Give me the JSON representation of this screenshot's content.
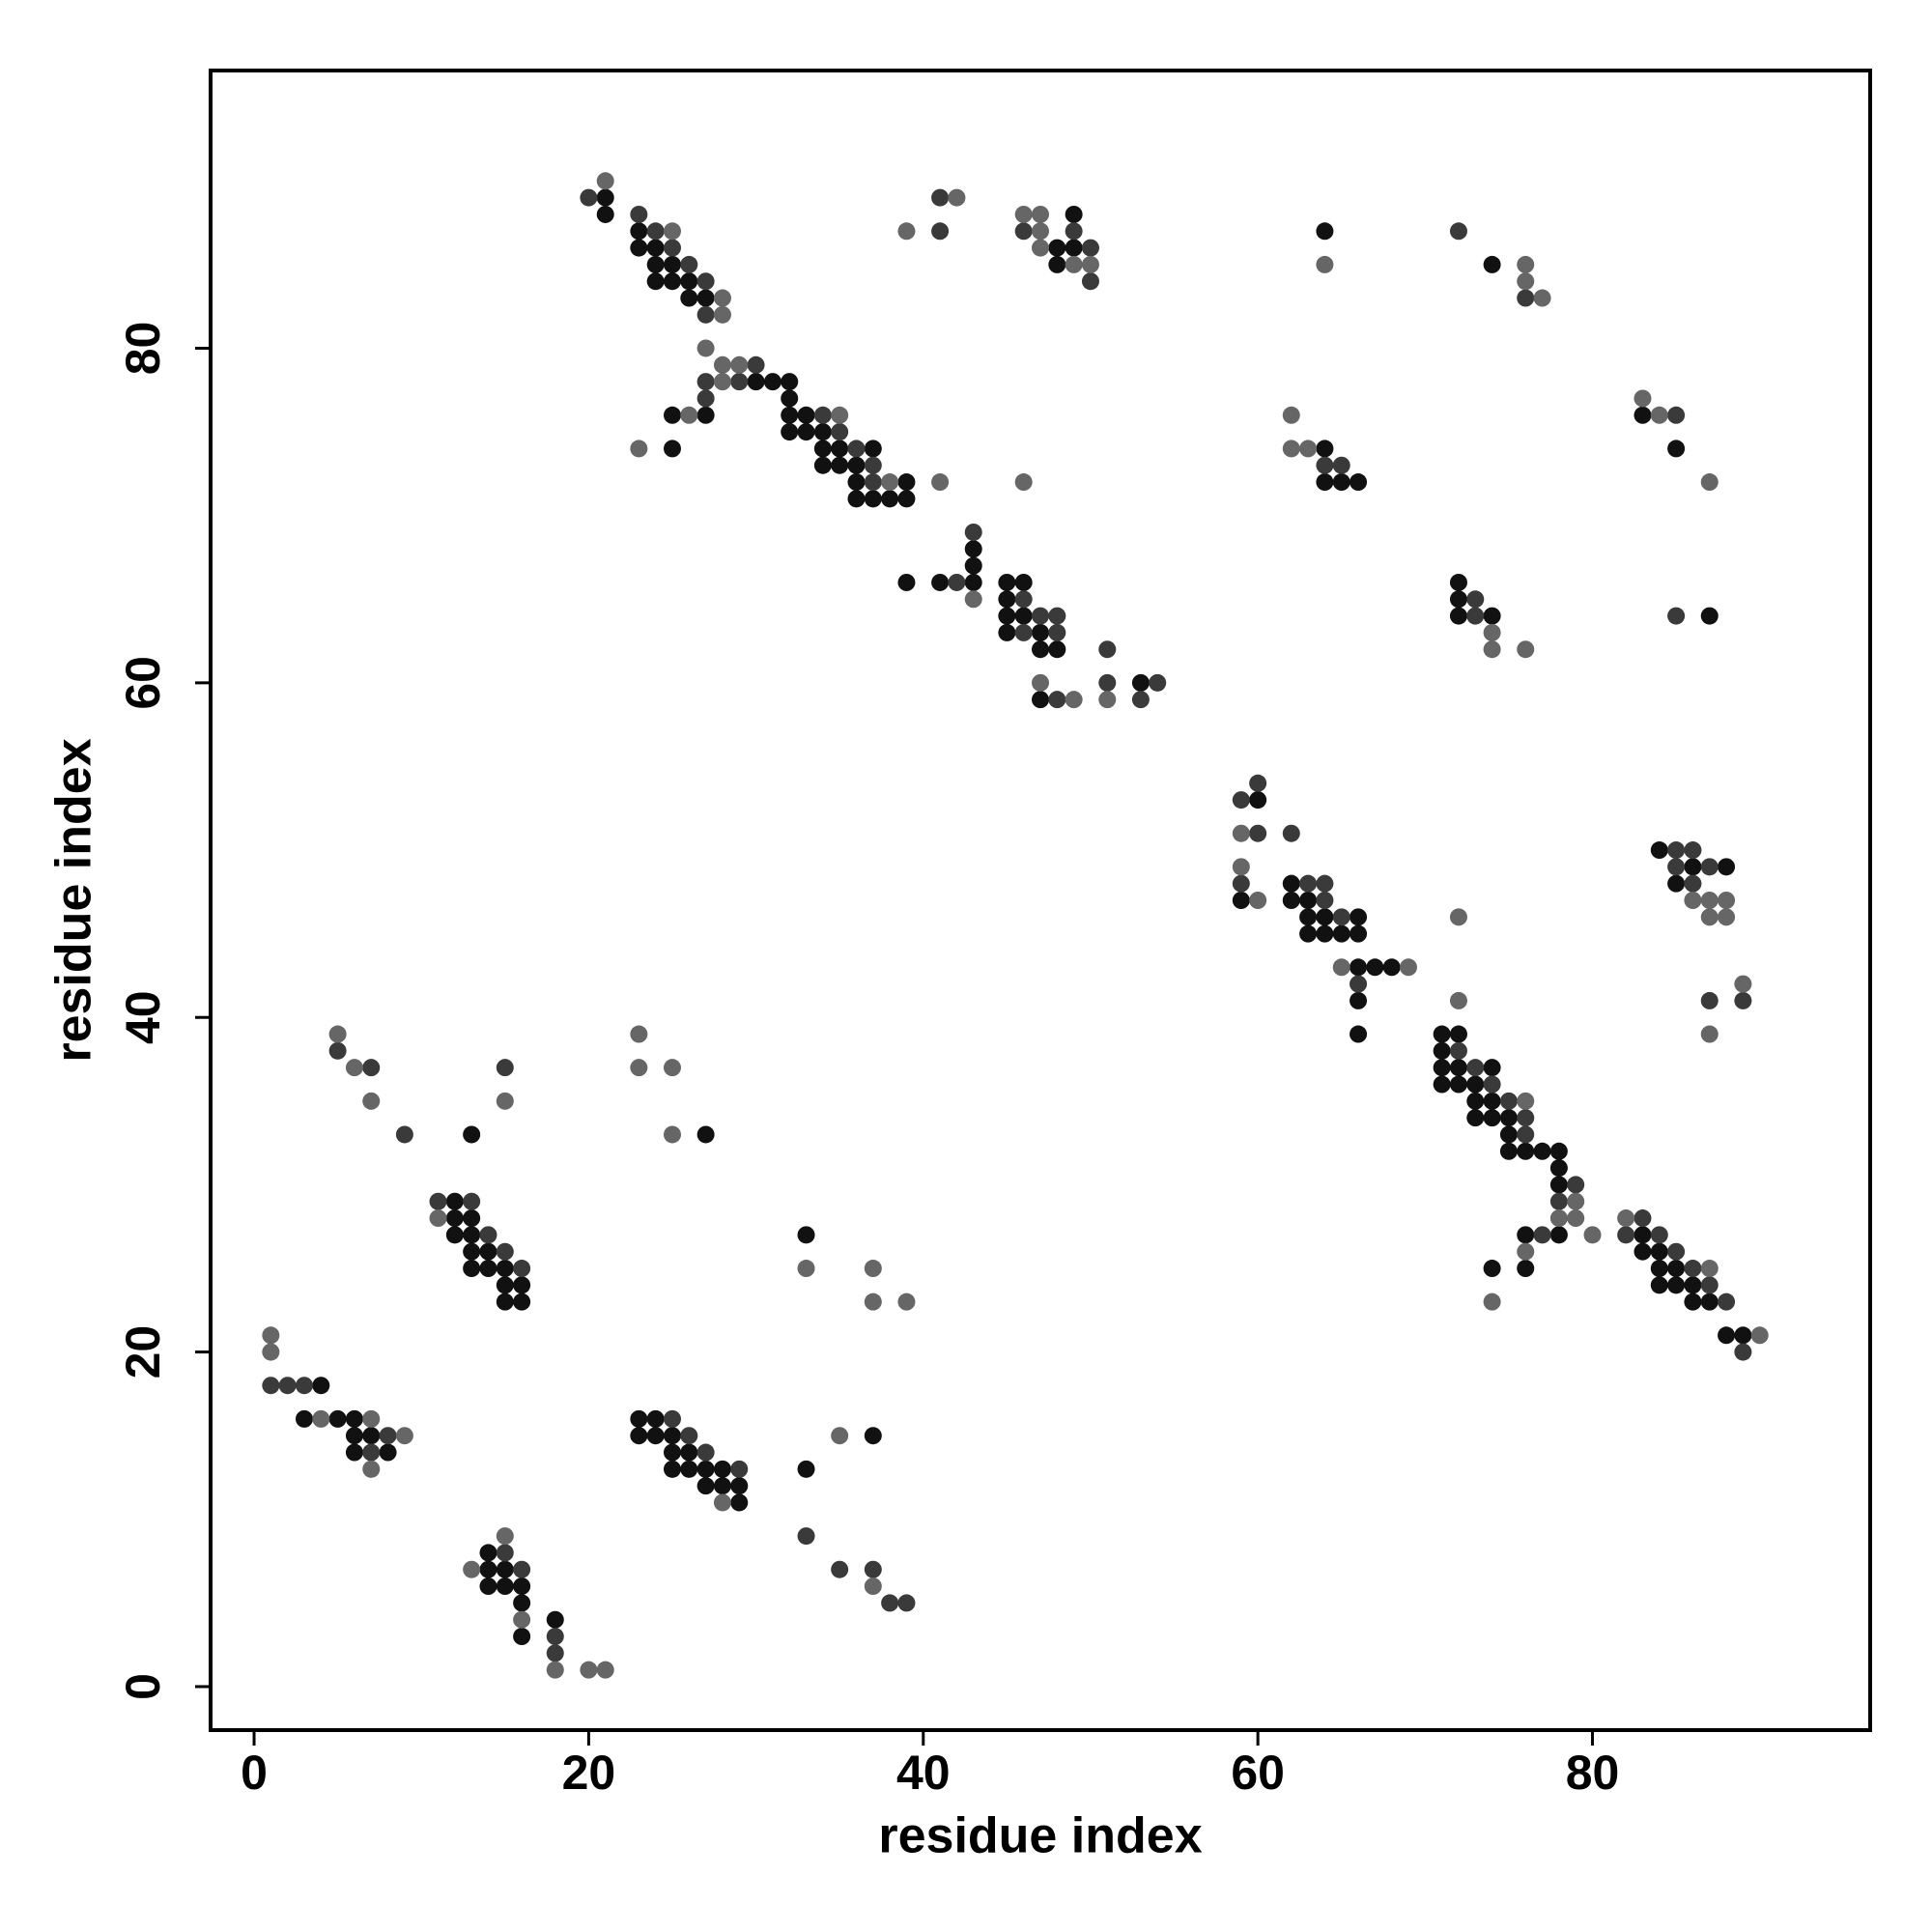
{
  "chart_data": {
    "type": "scatter",
    "xlabel": "residue index",
    "ylabel": "residue index",
    "xlim": [
      -2.6,
      96.6
    ],
    "ylim": [
      -2.6,
      96.6
    ],
    "xticks": [
      0,
      20,
      40,
      60,
      80
    ],
    "yticks": [
      0,
      20,
      40,
      60,
      80
    ],
    "series": [
      {
        "color": "#111111",
        "x": [
          21,
          21,
          23,
          23,
          24,
          24,
          25,
          24,
          25,
          26,
          26,
          27,
          30,
          31,
          32,
          32,
          25,
          27,
          32,
          33,
          32,
          33,
          34,
          25,
          34,
          35,
          37,
          34,
          35,
          36,
          36,
          39,
          36,
          37,
          38,
          39,
          43,
          43,
          39,
          41,
          43,
          45,
          46,
          45,
          45,
          46,
          45,
          47,
          47,
          48,
          53,
          47,
          49,
          48,
          49,
          48,
          64,
          74,
          64,
          64,
          65,
          66,
          83,
          85,
          72,
          72,
          72,
          74,
          87,
          60,
          59,
          62,
          62,
          63,
          63,
          64,
          66,
          63,
          64,
          65,
          66,
          66,
          67,
          68,
          66,
          66,
          84,
          86,
          88,
          85,
          71,
          72,
          71,
          71,
          72,
          74,
          71,
          72,
          73,
          73,
          74,
          73,
          74,
          75,
          75,
          75,
          76,
          77,
          78,
          78,
          78,
          76,
          78,
          74,
          76,
          83,
          83,
          84,
          84,
          85,
          84,
          85,
          86,
          86,
          87,
          88,
          89,
          13,
          27,
          12,
          12,
          13,
          12,
          13,
          13,
          14,
          13,
          14,
          15,
          15,
          16,
          15,
          16,
          33,
          4,
          3,
          5,
          6,
          6,
          7,
          6,
          8,
          23,
          24,
          23,
          24,
          25,
          25,
          26,
          25,
          26,
          27,
          28,
          27,
          28,
          29,
          29,
          33,
          37,
          14,
          14,
          15,
          14,
          15,
          16,
          16,
          16,
          18
        ],
        "values": [
          89,
          88,
          87,
          86,
          86,
          85,
          85,
          84,
          84,
          84,
          83,
          83,
          78,
          78,
          78,
          77,
          76,
          76,
          76,
          76,
          75,
          75,
          75,
          74,
          74,
          74,
          74,
          73,
          73,
          73,
          72,
          72,
          71,
          71,
          71,
          71,
          68,
          67,
          66,
          66,
          66,
          66,
          66,
          65,
          64,
          64,
          63,
          63,
          62,
          62,
          60,
          59,
          88,
          86,
          86,
          85,
          87,
          85,
          74,
          72,
          72,
          72,
          76,
          74,
          66,
          65,
          64,
          64,
          64,
          53,
          47,
          48,
          47,
          47,
          46,
          46,
          46,
          45,
          45,
          45,
          45,
          43,
          43,
          43,
          41,
          39,
          50,
          49,
          49,
          48,
          39,
          39,
          38,
          37,
          37,
          37,
          36,
          36,
          36,
          35,
          35,
          34,
          34,
          34,
          33,
          32,
          32,
          32,
          32,
          31,
          30,
          27,
          27,
          25,
          25,
          27,
          26,
          26,
          25,
          25,
          24,
          24,
          24,
          23,
          23,
          21,
          21,
          33,
          33,
          29,
          28,
          28,
          27,
          27,
          26,
          26,
          25,
          25,
          25,
          24,
          24,
          23,
          23,
          27,
          18,
          16,
          16,
          16,
          15,
          15,
          14,
          14,
          16,
          16,
          15,
          15,
          15,
          14,
          14,
          13,
          13,
          13,
          13,
          12,
          12,
          12,
          11,
          13,
          15,
          8,
          7,
          7,
          6,
          6,
          6,
          5,
          3,
          4
        ]
      },
      {
        "color": "#3a3a3a",
        "x": [
          20,
          23,
          24,
          25,
          26,
          27,
          27,
          30,
          29,
          27,
          27,
          34,
          35,
          36,
          37,
          37,
          43,
          42,
          46,
          47,
          48,
          46,
          48,
          51,
          51,
          54,
          48,
          53,
          41,
          41,
          46,
          49,
          50,
          50,
          72,
          76,
          64,
          65,
          85,
          73,
          73,
          85,
          59,
          60,
          60,
          62,
          59,
          63,
          64,
          64,
          65,
          66,
          85,
          86,
          85,
          87,
          86,
          89,
          87,
          72,
          73,
          74,
          75,
          76,
          76,
          79,
          78,
          77,
          83,
          82,
          84,
          85,
          86,
          87,
          88,
          89,
          5,
          7,
          9,
          15,
          11,
          13,
          14,
          15,
          16,
          1,
          2,
          3,
          8,
          7,
          25,
          26,
          27,
          29,
          33,
          15,
          16,
          18,
          18,
          35,
          37,
          38,
          39
        ],
        "values": [
          89,
          88,
          87,
          86,
          85,
          84,
          82,
          79,
          78,
          78,
          77,
          76,
          75,
          74,
          73,
          72,
          69,
          66,
          65,
          64,
          64,
          63,
          63,
          62,
          60,
          60,
          59,
          59,
          89,
          87,
          87,
          87,
          86,
          84,
          87,
          83,
          73,
          73,
          76,
          65,
          64,
          64,
          53,
          54,
          51,
          51,
          48,
          48,
          48,
          47,
          46,
          42,
          50,
          50,
          49,
          49,
          48,
          41,
          41,
          38,
          37,
          36,
          35,
          34,
          33,
          30,
          29,
          27,
          28,
          27,
          27,
          26,
          25,
          24,
          23,
          20,
          38,
          37,
          33,
          37,
          29,
          29,
          27,
          26,
          25,
          18,
          18,
          18,
          15,
          14,
          16,
          15,
          14,
          13,
          9,
          8,
          7,
          3,
          2,
          7,
          7,
          5,
          5
        ]
      },
      {
        "color": "#666666",
        "x": [
          21,
          25,
          28,
          28,
          27,
          28,
          29,
          28,
          26,
          35,
          23,
          38,
          41,
          46,
          43,
          47,
          49,
          51,
          42,
          39,
          46,
          47,
          47,
          47,
          49,
          50,
          64,
          76,
          76,
          77,
          62,
          62,
          63,
          83,
          84,
          87,
          74,
          74,
          76,
          59,
          59,
          60,
          65,
          69,
          72,
          86,
          87,
          88,
          87,
          88,
          89,
          87,
          72,
          76,
          79,
          78,
          79,
          80,
          76,
          74,
          82,
          87,
          90,
          5,
          6,
          7,
          15,
          23,
          23,
          25,
          25,
          11,
          33,
          37,
          37,
          39,
          1,
          1,
          4,
          7,
          9,
          7,
          28,
          35,
          13,
          15,
          16,
          18,
          20,
          21,
          37
        ],
        "values": [
          90,
          87,
          83,
          82,
          80,
          79,
          79,
          78,
          76,
          76,
          74,
          72,
          72,
          72,
          65,
          60,
          59,
          59,
          89,
          87,
          88,
          88,
          87,
          86,
          85,
          85,
          85,
          85,
          84,
          83,
          76,
          74,
          74,
          77,
          76,
          72,
          63,
          62,
          62,
          51,
          49,
          47,
          43,
          43,
          46,
          47,
          47,
          47,
          46,
          46,
          42,
          39,
          41,
          35,
          29,
          28,
          28,
          27,
          26,
          23,
          28,
          25,
          21,
          39,
          37,
          35,
          35,
          39,
          37,
          37,
          33,
          28,
          25,
          25,
          23,
          23,
          21,
          20,
          16,
          16,
          15,
          13,
          11,
          15,
          7,
          9,
          4,
          1,
          1,
          1,
          6
        ]
      }
    ]
  }
}
